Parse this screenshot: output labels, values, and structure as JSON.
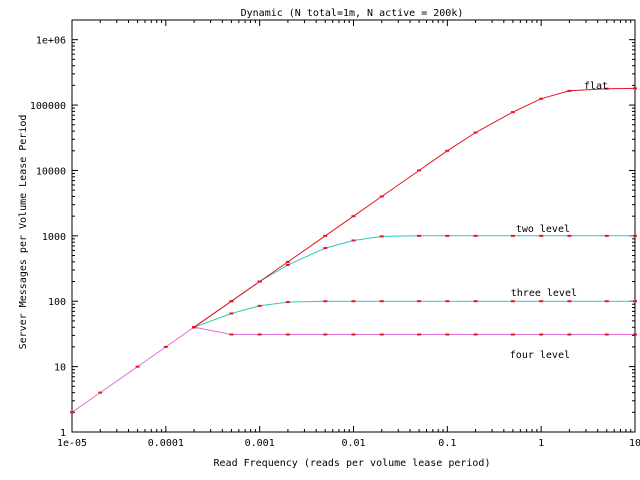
{
  "chart_data": {
    "type": "line",
    "title": "Dynamic (N total=1m, N active = 200k)",
    "xlabel": "Read Frequency (reads per volume lease period)",
    "ylabel": "Server Messages per Volume Lease Period",
    "xscale": "log",
    "yscale": "log",
    "xlim": [
      1e-05,
      10
    ],
    "ylim": [
      1,
      2000000
    ],
    "xticks": [
      "1e-05",
      "0.0001",
      "0.001",
      "0.01",
      "0.1",
      "1",
      "10"
    ],
    "yticks": [
      "1",
      "10",
      "100",
      "1000",
      "10000",
      "100000",
      "1e+06"
    ],
    "grid": false,
    "series": [
      {
        "name": "flat",
        "color": "#e8141e",
        "x": [
          0.0002,
          0.0005,
          0.001,
          0.002,
          0.005,
          0.01,
          0.02,
          0.05,
          0.1,
          0.2,
          0.5,
          1,
          2,
          5,
          10
        ],
        "y": [
          40,
          100,
          200,
          400,
          1000,
          2000,
          4000,
          10000,
          20000,
          38000,
          78000,
          125000,
          165000,
          178000,
          180000
        ]
      },
      {
        "name": "two level",
        "color": "#22c8c8",
        "x": [
          0.0002,
          0.0005,
          0.001,
          0.002,
          0.005,
          0.01,
          0.02,
          0.05,
          0.1,
          0.2,
          0.5,
          1,
          2,
          5,
          10
        ],
        "y": [
          40,
          100,
          200,
          360,
          650,
          850,
          980,
          1000,
          1000,
          1000,
          1000,
          1000,
          1000,
          1000,
          1000
        ]
      },
      {
        "name": "three level",
        "color": "#3cc8a8",
        "x": [
          0.0002,
          0.0005,
          0.001,
          0.002,
          0.005,
          0.01,
          0.02,
          0.05,
          0.1,
          0.2,
          0.5,
          1,
          2,
          5,
          10
        ],
        "y": [
          40,
          65,
          85,
          97,
          100,
          100,
          100,
          100,
          100,
          100,
          100,
          100,
          100,
          100,
          100
        ]
      },
      {
        "name": "four level",
        "color": "#e070d8",
        "x": [
          1e-05,
          2e-05,
          5e-05,
          0.0001,
          0.0002,
          0.0005,
          0.001,
          0.002,
          0.005,
          0.01,
          0.02,
          0.05,
          0.1,
          0.2,
          0.5,
          1,
          2,
          5,
          10
        ],
        "y": [
          2,
          4,
          10,
          20,
          40,
          31,
          31,
          31,
          31,
          31,
          31,
          31,
          31,
          31,
          31,
          31,
          31,
          31,
          31
        ]
      }
    ]
  }
}
